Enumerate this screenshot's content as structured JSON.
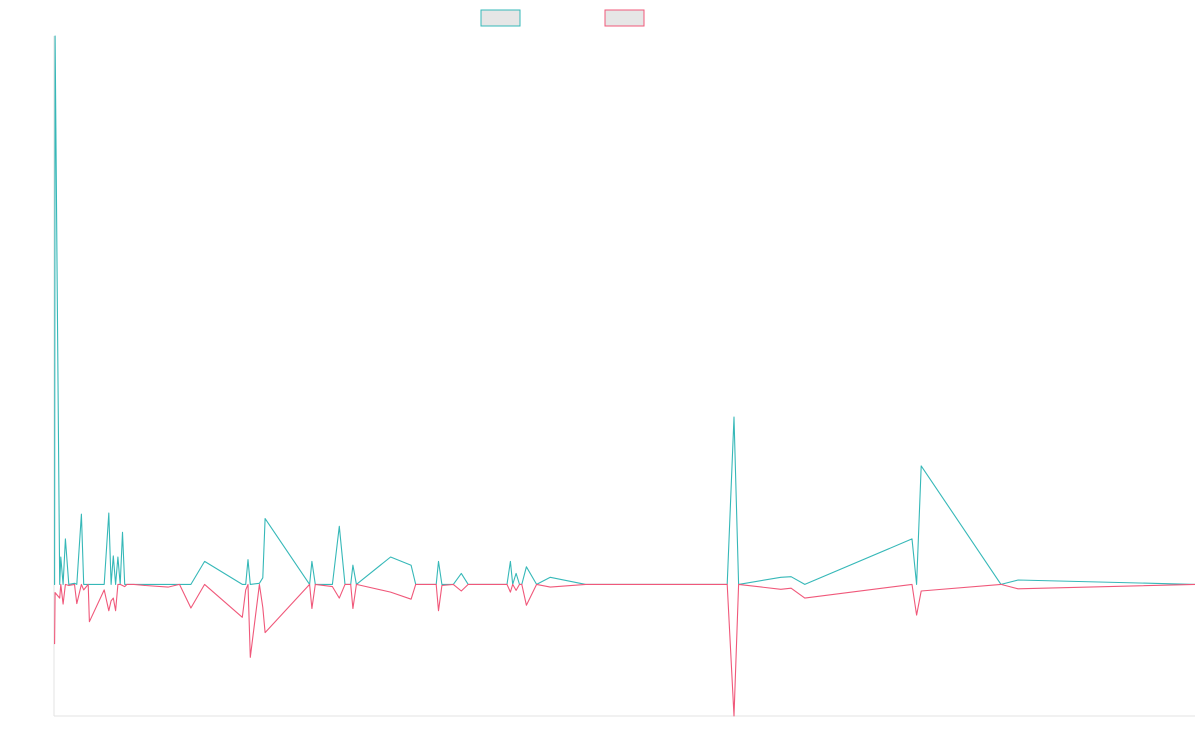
{
  "chart_data": {
    "type": "line",
    "title": "",
    "xlabel": "",
    "ylabel": "",
    "legend_position": "top-center",
    "grid": false,
    "ylim": [
      -24,
      100
    ],
    "xlim": [
      0,
      1000
    ],
    "x": [
      0,
      0.5,
      1,
      5,
      6,
      8,
      10,
      13,
      18,
      20,
      24,
      26,
      30,
      31,
      44,
      48,
      50,
      52,
      54,
      56,
      58,
      60,
      62,
      64,
      66,
      68,
      70,
      80,
      100,
      110,
      120,
      132,
      165,
      168,
      170,
      172,
      180,
      183,
      185,
      224,
      226,
      229,
      244,
      250,
      255,
      260,
      262,
      265,
      295,
      313,
      317,
      335,
      337,
      340,
      350,
      357,
      363,
      397,
      400,
      402,
      405,
      408,
      410,
      414,
      423,
      435,
      466,
      470,
      590,
      596,
      600,
      637,
      646,
      658,
      752,
      756,
      760,
      830,
      845,
      1000
    ],
    "series": [
      {
        "color": "#36b8b8",
        "values": [
          0,
          0,
          100,
          0,
          5,
          0,
          8.3,
          0,
          0.2,
          0,
          12.8,
          0,
          0,
          0,
          0,
          13,
          0,
          5.2,
          0,
          5,
          0,
          9.5,
          0,
          0,
          0,
          0,
          0,
          0,
          0,
          0,
          0,
          4.2,
          0,
          0,
          4.5,
          0,
          0.2,
          1.2,
          12,
          0,
          4.2,
          0,
          0,
          10.6,
          0,
          0,
          3.5,
          0,
          5,
          3.5,
          0,
          0,
          4.2,
          0,
          0,
          2,
          0,
          0,
          4.2,
          0,
          2,
          0,
          0,
          3.2,
          0,
          1.3,
          0,
          0,
          0,
          30.5,
          0,
          1.3,
          1.4,
          0,
          8.3,
          0,
          21.6,
          0,
          0.8,
          0
        ]
      },
      {
        "color": "#f0587a",
        "values": [
          -10.8,
          -10.8,
          -1.5,
          -2.5,
          0,
          -3.6,
          0,
          -0.2,
          0,
          -3.5,
          0,
          -1,
          0,
          -6.8,
          -1,
          -4.8,
          -3,
          -2.5,
          -4.8,
          0,
          0,
          -0.2,
          -0.4,
          0,
          0,
          0,
          0,
          -0.2,
          -0.5,
          0,
          -4.3,
          0,
          -6,
          -1,
          0,
          -13.3,
          0,
          -4.2,
          -8.8,
          0,
          -4.4,
          0,
          -0.4,
          -2.5,
          0,
          0,
          -4.4,
          0,
          -1.4,
          -2.7,
          0,
          0,
          -4.8,
          -0.2,
          0,
          -1.2,
          0,
          0,
          -1.4,
          0,
          -1.1,
          0,
          0,
          -3.8,
          0,
          -0.5,
          0,
          0,
          0,
          -24,
          0,
          -0.9,
          -0.7,
          -2.5,
          0,
          -5.6,
          -1.2,
          0,
          -0.8,
          0
        ]
      }
    ]
  }
}
